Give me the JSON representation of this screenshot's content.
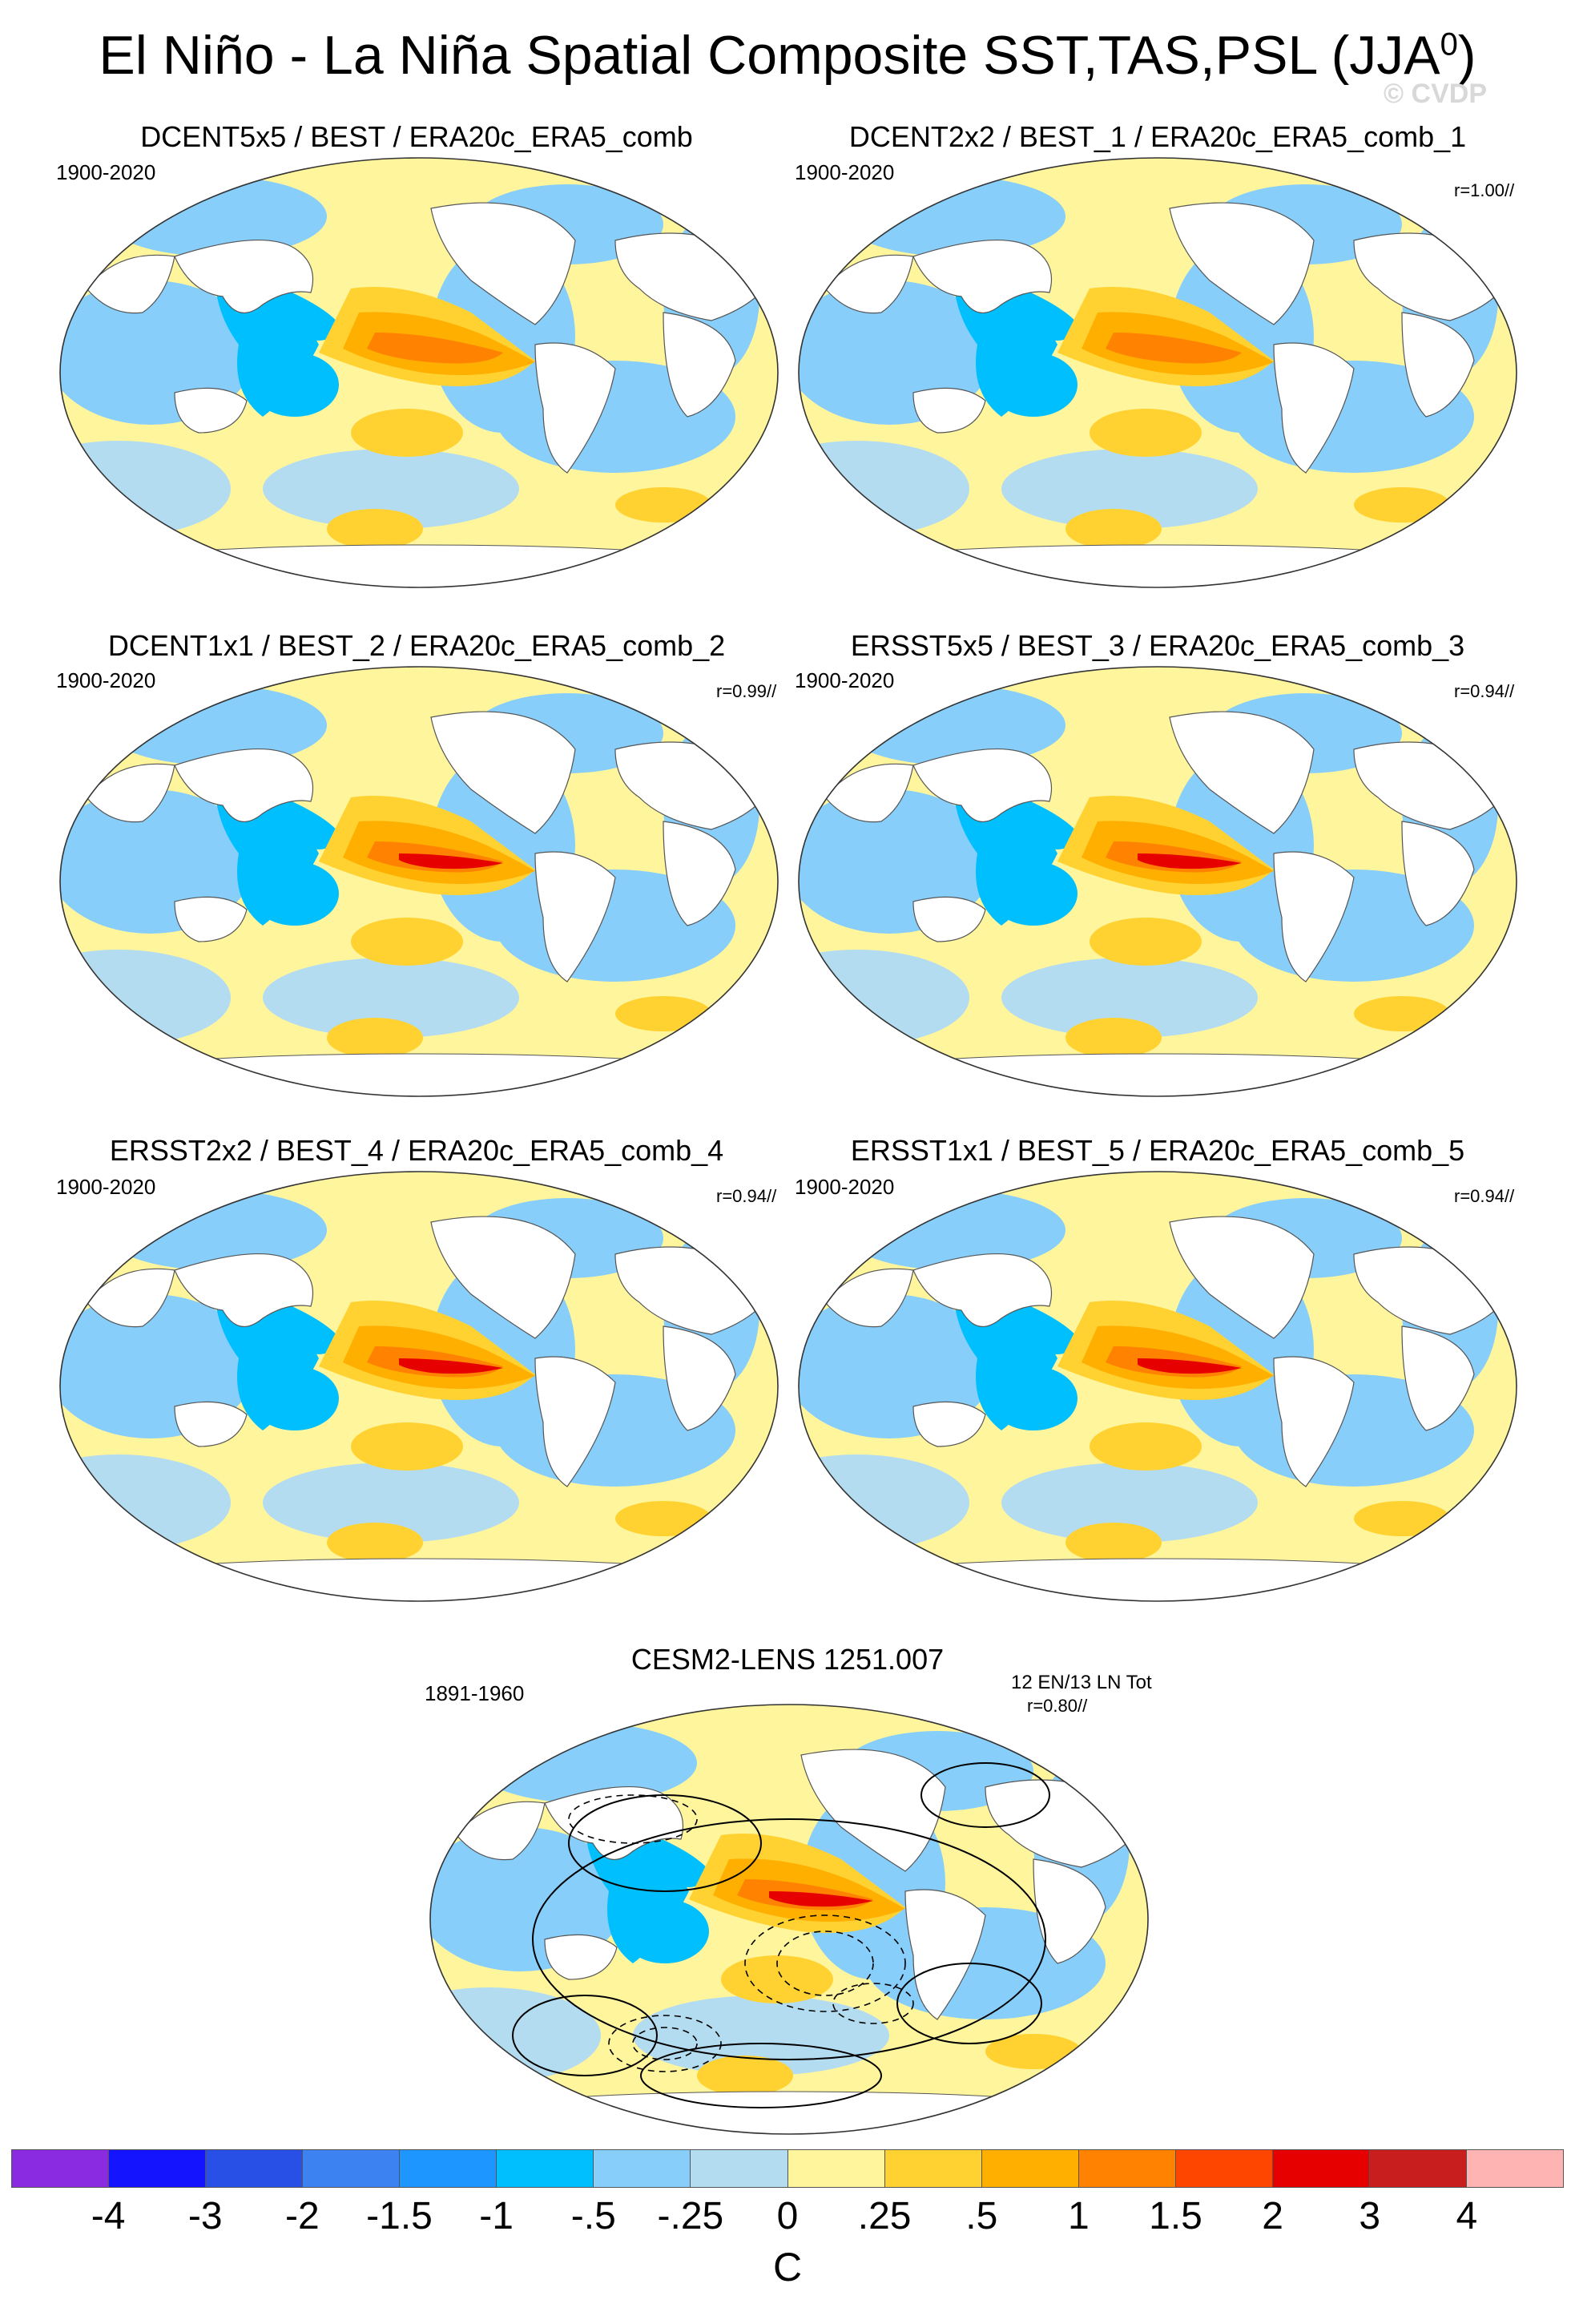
{
  "title": {
    "main": "El Niño - La Niña Spatial Composite SST,TAS,PSL (JJA",
    "sup": "0",
    "close": ")"
  },
  "watermark": "© CVDP",
  "panels": [
    {
      "title": "DCENT5x5 / BEST / ERA20c_ERA5_comb",
      "years": "1900-2020",
      "r": ""
    },
    {
      "title": "DCENT2x2 / BEST_1 / ERA20c_ERA5_comb_1",
      "years": "1900-2020",
      "r": "r=1.00//"
    },
    {
      "title": "DCENT1x1 / BEST_2 / ERA20c_ERA5_comb_2",
      "years": "1900-2020",
      "r": "r=0.99//"
    },
    {
      "title": "ERSST5x5 / BEST_3 / ERA20c_ERA5_comb_3",
      "years": "1900-2020",
      "r": "r=0.94//"
    },
    {
      "title": "ERSST2x2 / BEST_4 / ERA20c_ERA5_comb_4",
      "years": "1900-2020",
      "r": "r=0.94//"
    },
    {
      "title": "ERSST1x1 / BEST_5 / ERA20c_ERA5_comb_5",
      "years": "1900-2020",
      "r": "r=0.94//"
    }
  ],
  "cesm": {
    "title": "CESM2-LENS 1251.007",
    "years": "1891-1960",
    "counts": "12 EN/13 LN Tot",
    "r": "r=0.80//"
  },
  "chart_data": {
    "type": "heatmap",
    "title": "El Niño - La Niña Spatial Composite SST,TAS,PSL (JJA0)",
    "colorbar": {
      "units": "C",
      "levels": [
        "-4",
        "-3",
        "-2",
        "-1.5",
        "-1",
        "-.5",
        "-.25",
        "0",
        ".25",
        ".5",
        "1",
        "1.5",
        "2",
        "3",
        "4"
      ],
      "colors": [
        "#8a2be2",
        "#1414ff",
        "#2850e6",
        "#3c82f0",
        "#1e96ff",
        "#00bfff",
        "#87cefa",
        "#b4dcf0",
        "#fff59d",
        "#ffd232",
        "#ffaf00",
        "#ff8200",
        "#ff4600",
        "#e60000",
        "#c81e1e",
        "#ffb4b4"
      ]
    }
  }
}
